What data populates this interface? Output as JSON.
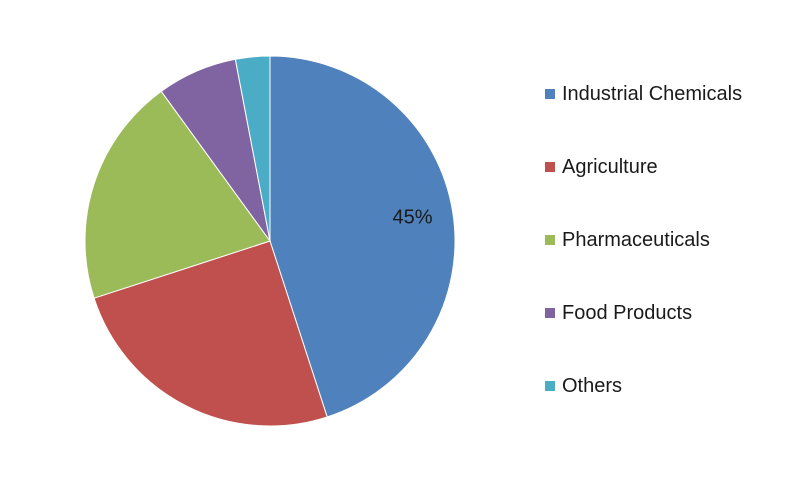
{
  "chart_data": {
    "type": "pie",
    "title": "",
    "slices": [
      {
        "label": "Industrial Chemicals",
        "value": 45,
        "color": "#4F81BD",
        "data_label": "45%"
      },
      {
        "label": "Agriculture",
        "value": 25,
        "color": "#C0504D",
        "data_label": ""
      },
      {
        "label": "Pharmaceuticals",
        "value": 20,
        "color": "#9BBB59",
        "data_label": ""
      },
      {
        "label": "Food Products",
        "value": 7,
        "color": "#8064A2",
        "data_label": ""
      },
      {
        "label": "Others",
        "value": 3,
        "color": "#4BACC6",
        "data_label": ""
      }
    ],
    "legend_position": "right"
  }
}
